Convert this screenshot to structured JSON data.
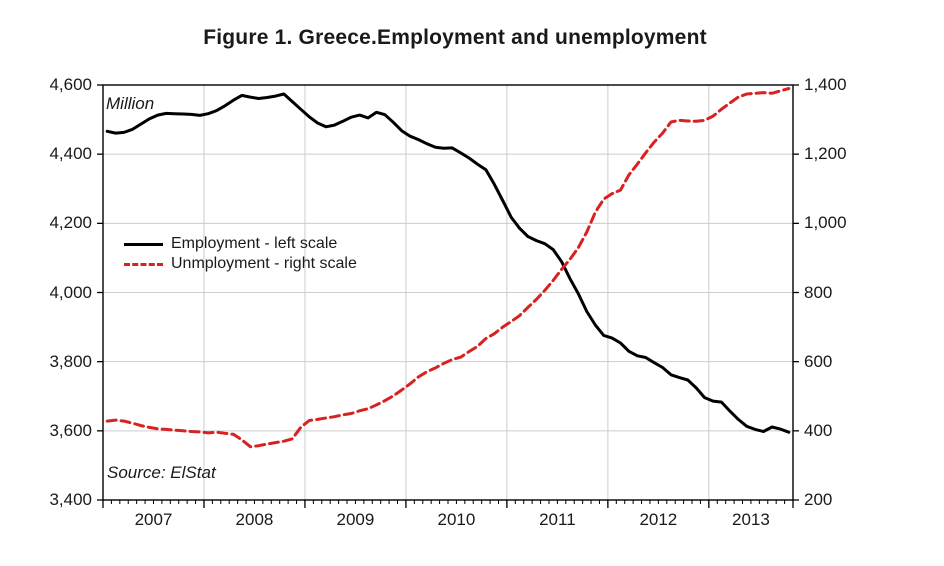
{
  "chart_data": {
    "type": "line",
    "title": "Figure 1. Greece.Employment and unemployment",
    "unit_label": "Million",
    "source_note": "Source: ElStat",
    "x_axis": {
      "frequency": "monthly",
      "start": "2007-01",
      "end": "2013-10",
      "year_labels": [
        "2007",
        "2008",
        "2009",
        "2010",
        "2011",
        "2012",
        "2013"
      ]
    },
    "left_axis": {
      "min": 3400,
      "max": 4600,
      "ticks": [
        "4,600",
        "4,400",
        "4,200",
        "4,000",
        "3,800",
        "3,600",
        "3,400"
      ]
    },
    "right_axis": {
      "min": 200,
      "max": 1400,
      "ticks": [
        "1,400",
        "1,200",
        "1,000",
        "800",
        "600",
        "400",
        "200"
      ]
    },
    "grid": "on",
    "legend_position": "inside-left-middle",
    "series": [
      {
        "name": "Employment - left scale",
        "axis": "left",
        "color": "#000000",
        "style": "solid",
        "values": [
          4466,
          4461,
          4463,
          4472,
          4487,
          4502,
          4513,
          4518,
          4517,
          4516,
          4515,
          4512,
          4517,
          4526,
          4540,
          4556,
          4570,
          4565,
          4561,
          4564,
          4568,
          4574,
          4552,
          4530,
          4508,
          4490,
          4479,
          4484,
          4495,
          4507,
          4513,
          4505,
          4521,
          4514,
          4492,
          4468,
          4452,
          4442,
          4430,
          4420,
          4417,
          4418,
          4404,
          4389,
          4371,
          4355,
          4313,
          4266,
          4218,
          4186,
          4162,
          4150,
          4141,
          4124,
          4089,
          4040,
          3996,
          3945,
          3906,
          3876,
          3868,
          3854,
          3830,
          3817,
          3812,
          3797,
          3783,
          3762,
          3754,
          3747,
          3724,
          3696,
          3686,
          3683,
          3657,
          3633,
          3613,
          3604,
          3598,
          3611,
          3605,
          3596
        ]
      },
      {
        "name": "Unmployment - right scale",
        "axis": "right",
        "color": "#d92121",
        "style": "dashed",
        "values": [
          428,
          431,
          428,
          422,
          415,
          410,
          406,
          404,
          402,
          400,
          398,
          397,
          394,
          396,
          393,
          390,
          374,
          354,
          357,
          362,
          366,
          370,
          377,
          410,
          430,
          433,
          437,
          441,
          446,
          450,
          458,
          464,
          475,
          487,
          501,
          518,
          536,
          556,
          571,
          582,
          595,
          606,
          613,
          629,
          644,
          667,
          681,
          700,
          716,
          733,
          757,
          780,
          806,
          835,
          867,
          896,
          930,
          975,
          1032,
          1070,
          1086,
          1096,
          1140,
          1171,
          1204,
          1235,
          1261,
          1293,
          1298,
          1296,
          1295,
          1298,
          1310,
          1330,
          1348,
          1365,
          1374,
          1376,
          1378,
          1376,
          1383,
          1390
        ]
      }
    ],
    "colors": {
      "employment_line": "#000000",
      "unemployment_line": "#d92121",
      "gridline": "#cccccc",
      "axis": "#000000",
      "background": "#ffffff"
    }
  }
}
